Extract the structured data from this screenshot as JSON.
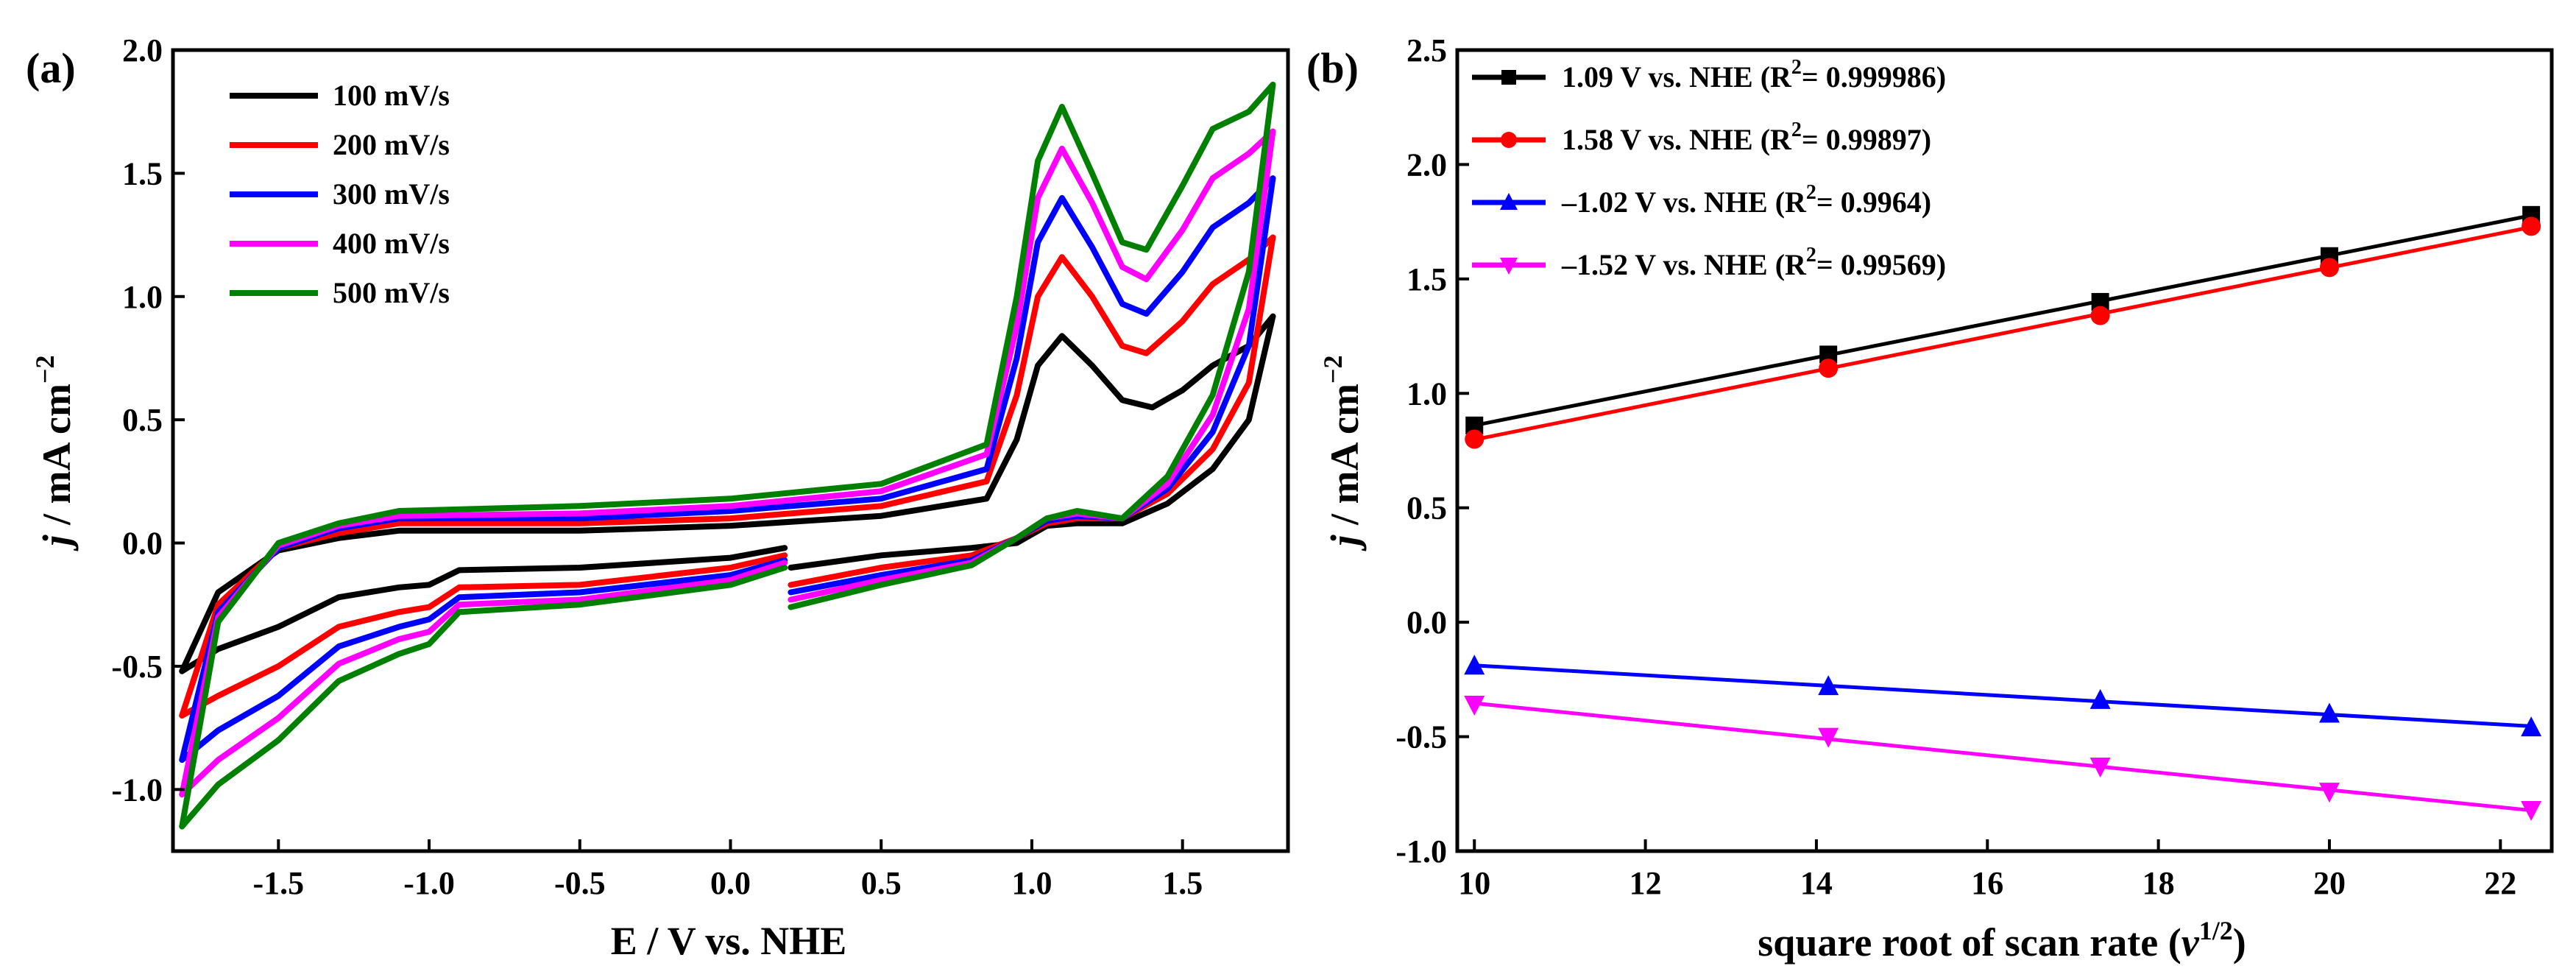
{
  "chart_data": [
    {
      "panel": "(a)",
      "type": "line",
      "xlabel": "E / V vs. NHE",
      "ylabel_parts": {
        "italic": "j",
        "rest": " / mA cm",
        "sup": "−2"
      },
      "xlim": [
        -1.85,
        1.85
      ],
      "ylim": [
        -1.25,
        2.0
      ],
      "x_ticks": [
        -1.5,
        -1.0,
        -0.5,
        0.0,
        0.5,
        1.0,
        1.5
      ],
      "x_tick_labels": [
        "-1.5",
        "-1.0",
        "-0.5",
        "0.0",
        "0.5",
        "1.0",
        "1.5"
      ],
      "y_ticks": [
        -1.0,
        -0.5,
        0.0,
        0.5,
        1.0,
        1.5,
        2.0
      ],
      "y_tick_labels": [
        "-1.0",
        "-0.5",
        "0.0",
        "0.5",
        "1.0",
        "1.5",
        "2.0"
      ],
      "legend_position": "top-left",
      "series": [
        {
          "name": "100 mV/s",
          "color": "#000000",
          "upper": [
            [
              -1.82,
              -0.52
            ],
            [
              -1.7,
              -0.2
            ],
            [
              -1.5,
              -0.03
            ],
            [
              -1.3,
              0.02
            ],
            [
              -1.1,
              0.05
            ],
            [
              -0.5,
              0.05
            ],
            [
              0.0,
              0.07
            ],
            [
              0.5,
              0.11
            ],
            [
              0.85,
              0.18
            ],
            [
              0.95,
              0.42
            ],
            [
              1.02,
              0.72
            ],
            [
              1.1,
              0.84
            ],
            [
              1.2,
              0.72
            ],
            [
              1.3,
              0.58
            ],
            [
              1.4,
              0.55
            ],
            [
              1.5,
              0.62
            ],
            [
              1.6,
              0.72
            ],
            [
              1.72,
              0.8
            ],
            [
              1.8,
              0.92
            ]
          ],
          "lower_right": [
            [
              1.8,
              0.92
            ],
            [
              1.72,
              0.5
            ],
            [
              1.6,
              0.3
            ],
            [
              1.45,
              0.16
            ],
            [
              1.3,
              0.08
            ],
            [
              1.15,
              0.08
            ],
            [
              1.05,
              0.07
            ],
            [
              0.95,
              0.0
            ],
            [
              0.8,
              -0.02
            ],
            [
              0.5,
              -0.05
            ],
            [
              0.2,
              -0.1
            ]
          ],
          "lower_left": [
            [
              0.18,
              -0.02
            ],
            [
              0.0,
              -0.06
            ],
            [
              -0.5,
              -0.1
            ],
            [
              -0.9,
              -0.11
            ],
            [
              -1.0,
              -0.17
            ],
            [
              -1.1,
              -0.18
            ],
            [
              -1.3,
              -0.22
            ],
            [
              -1.5,
              -0.34
            ],
            [
              -1.7,
              -0.43
            ],
            [
              -1.82,
              -0.52
            ]
          ]
        },
        {
          "name": "200 mV/s",
          "color": "#ff0000",
          "upper": [
            [
              -1.82,
              -0.7
            ],
            [
              -1.7,
              -0.25
            ],
            [
              -1.5,
              -0.02
            ],
            [
              -1.3,
              0.04
            ],
            [
              -1.1,
              0.08
            ],
            [
              -0.5,
              0.08
            ],
            [
              0.0,
              0.1
            ],
            [
              0.5,
              0.15
            ],
            [
              0.85,
              0.25
            ],
            [
              0.95,
              0.6
            ],
            [
              1.02,
              1.0
            ],
            [
              1.1,
              1.16
            ],
            [
              1.2,
              1.0
            ],
            [
              1.3,
              0.8
            ],
            [
              1.38,
              0.77
            ],
            [
              1.5,
              0.9
            ],
            [
              1.6,
              1.05
            ],
            [
              1.72,
              1.15
            ],
            [
              1.8,
              1.24
            ]
          ],
          "lower_right": [
            [
              1.8,
              1.24
            ],
            [
              1.72,
              0.65
            ],
            [
              1.6,
              0.38
            ],
            [
              1.45,
              0.2
            ],
            [
              1.3,
              0.1
            ],
            [
              1.15,
              0.1
            ],
            [
              1.05,
              0.08
            ],
            [
              0.95,
              0.02
            ],
            [
              0.8,
              -0.05
            ],
            [
              0.5,
              -0.1
            ],
            [
              0.2,
              -0.17
            ]
          ],
          "lower_left": [
            [
              0.18,
              -0.05
            ],
            [
              0.0,
              -0.1
            ],
            [
              -0.5,
              -0.17
            ],
            [
              -0.9,
              -0.18
            ],
            [
              -1.0,
              -0.26
            ],
            [
              -1.1,
              -0.28
            ],
            [
              -1.3,
              -0.34
            ],
            [
              -1.5,
              -0.5
            ],
            [
              -1.7,
              -0.62
            ],
            [
              -1.82,
              -0.7
            ]
          ]
        },
        {
          "name": "300 mV/s",
          "color": "#0000ff",
          "upper": [
            [
              -1.82,
              -0.88
            ],
            [
              -1.7,
              -0.28
            ],
            [
              -1.5,
              -0.02
            ],
            [
              -1.3,
              0.06
            ],
            [
              -1.1,
              0.1
            ],
            [
              -0.5,
              0.1
            ],
            [
              0.0,
              0.13
            ],
            [
              0.5,
              0.18
            ],
            [
              0.85,
              0.3
            ],
            [
              0.95,
              0.75
            ],
            [
              1.02,
              1.22
            ],
            [
              1.1,
              1.4
            ],
            [
              1.2,
              1.2
            ],
            [
              1.3,
              0.97
            ],
            [
              1.38,
              0.93
            ],
            [
              1.5,
              1.1
            ],
            [
              1.6,
              1.28
            ],
            [
              1.72,
              1.38
            ],
            [
              1.8,
              1.48
            ]
          ],
          "lower_right": [
            [
              1.8,
              1.48
            ],
            [
              1.72,
              0.8
            ],
            [
              1.6,
              0.45
            ],
            [
              1.45,
              0.22
            ],
            [
              1.3,
              0.1
            ],
            [
              1.15,
              0.11
            ],
            [
              1.05,
              0.09
            ],
            [
              0.95,
              0.02
            ],
            [
              0.8,
              -0.07
            ],
            [
              0.5,
              -0.13
            ],
            [
              0.2,
              -0.2
            ]
          ],
          "lower_left": [
            [
              0.18,
              -0.07
            ],
            [
              0.0,
              -0.13
            ],
            [
              -0.5,
              -0.2
            ],
            [
              -0.9,
              -0.22
            ],
            [
              -1.0,
              -0.31
            ],
            [
              -1.1,
              -0.34
            ],
            [
              -1.3,
              -0.42
            ],
            [
              -1.5,
              -0.62
            ],
            [
              -1.7,
              -0.76
            ],
            [
              -1.82,
              -0.88
            ]
          ]
        },
        {
          "name": "400 mV/s",
          "color": "#ff00ff",
          "upper": [
            [
              -1.82,
              -1.02
            ],
            [
              -1.7,
              -0.3
            ],
            [
              -1.5,
              -0.01
            ],
            [
              -1.3,
              0.07
            ],
            [
              -1.1,
              0.11
            ],
            [
              -0.5,
              0.12
            ],
            [
              0.0,
              0.15
            ],
            [
              0.5,
              0.21
            ],
            [
              0.85,
              0.36
            ],
            [
              0.95,
              0.88
            ],
            [
              1.02,
              1.4
            ],
            [
              1.1,
              1.6
            ],
            [
              1.2,
              1.38
            ],
            [
              1.3,
              1.12
            ],
            [
              1.38,
              1.07
            ],
            [
              1.5,
              1.27
            ],
            [
              1.6,
              1.48
            ],
            [
              1.72,
              1.58
            ],
            [
              1.8,
              1.67
            ]
          ],
          "lower_right": [
            [
              1.8,
              1.67
            ],
            [
              1.72,
              0.95
            ],
            [
              1.6,
              0.52
            ],
            [
              1.45,
              0.24
            ],
            [
              1.3,
              0.1
            ],
            [
              1.15,
              0.12
            ],
            [
              1.05,
              0.1
            ],
            [
              0.95,
              0.02
            ],
            [
              0.8,
              -0.08
            ],
            [
              0.5,
              -0.15
            ],
            [
              0.2,
              -0.23
            ]
          ],
          "lower_left": [
            [
              0.18,
              -0.08
            ],
            [
              0.0,
              -0.15
            ],
            [
              -0.5,
              -0.23
            ],
            [
              -0.9,
              -0.25
            ],
            [
              -1.0,
              -0.36
            ],
            [
              -1.1,
              -0.39
            ],
            [
              -1.3,
              -0.49
            ],
            [
              -1.5,
              -0.71
            ],
            [
              -1.7,
              -0.88
            ],
            [
              -1.82,
              -1.02
            ]
          ]
        },
        {
          "name": "500 mV/s",
          "color": "#008000",
          "upper": [
            [
              -1.82,
              -1.15
            ],
            [
              -1.7,
              -0.32
            ],
            [
              -1.5,
              0.0
            ],
            [
              -1.3,
              0.08
            ],
            [
              -1.1,
              0.13
            ],
            [
              -0.5,
              0.15
            ],
            [
              0.0,
              0.18
            ],
            [
              0.5,
              0.24
            ],
            [
              0.85,
              0.4
            ],
            [
              0.95,
              1.0
            ],
            [
              1.02,
              1.55
            ],
            [
              1.1,
              1.77
            ],
            [
              1.2,
              1.5
            ],
            [
              1.3,
              1.22
            ],
            [
              1.38,
              1.19
            ],
            [
              1.5,
              1.45
            ],
            [
              1.6,
              1.68
            ],
            [
              1.72,
              1.75
            ],
            [
              1.8,
              1.86
            ]
          ],
          "lower_right": [
            [
              1.8,
              1.86
            ],
            [
              1.72,
              1.1
            ],
            [
              1.6,
              0.6
            ],
            [
              1.45,
              0.27
            ],
            [
              1.3,
              0.1
            ],
            [
              1.15,
              0.13
            ],
            [
              1.05,
              0.1
            ],
            [
              0.95,
              0.02
            ],
            [
              0.8,
              -0.09
            ],
            [
              0.5,
              -0.17
            ],
            [
              0.2,
              -0.26
            ]
          ],
          "lower_left": [
            [
              0.18,
              -0.1
            ],
            [
              0.0,
              -0.17
            ],
            [
              -0.5,
              -0.25
            ],
            [
              -0.9,
              -0.28
            ],
            [
              -1.0,
              -0.41
            ],
            [
              -1.1,
              -0.45
            ],
            [
              -1.3,
              -0.56
            ],
            [
              -1.5,
              -0.8
            ],
            [
              -1.7,
              -0.98
            ],
            [
              -1.82,
              -1.15
            ]
          ]
        }
      ]
    },
    {
      "panel": "(b)",
      "type": "line",
      "xlabel_parts": {
        "text": "square root of scan rate (",
        "italic": "v",
        "sup": "1/2",
        "close": ")"
      },
      "ylabel_parts": {
        "italic": "j",
        "rest": " / mA cm",
        "sup": "−2"
      },
      "xlim": [
        9.8,
        22.6
      ],
      "ylim": [
        -1.0,
        2.5
      ],
      "x_ticks": [
        10,
        12,
        14,
        16,
        18,
        20,
        22
      ],
      "x_tick_labels": [
        "10",
        "12",
        "14",
        "16",
        "18",
        "20",
        "22"
      ],
      "y_ticks": [
        -1.0,
        -0.5,
        0.0,
        0.5,
        1.0,
        1.5,
        2.0,
        2.5
      ],
      "y_tick_labels": [
        "-1.0",
        "-0.5",
        "0.0",
        "0.5",
        "1.0",
        "1.5",
        "2.0",
        "2.5"
      ],
      "legend_position": "top-left",
      "x": [
        10,
        14.14,
        17.32,
        20,
        22.36
      ],
      "series": [
        {
          "name": "1.09 V vs. NHE",
          "r2_prefix": " (R",
          "r2_value": "= 0.999986)",
          "color": "#000000",
          "marker": "square",
          "values": [
            0.86,
            1.17,
            1.4,
            1.6,
            1.78
          ]
        },
        {
          "name": "1.58 V vs. NHE",
          "r2_prefix": " (R",
          "r2_value": "= 0.99897)",
          "color": "#ff0000",
          "marker": "circle",
          "values": [
            0.8,
            1.11,
            1.34,
            1.55,
            1.73
          ]
        },
        {
          "name": "–1.02 V vs. NHE",
          "r2_prefix": " (R",
          "r2_value": "= 0.9964)",
          "color": "#0000ff",
          "marker": "triangle-up",
          "values": [
            -0.19,
            -0.28,
            -0.34,
            -0.4,
            -0.46
          ]
        },
        {
          "name": "–1.52 V vs. NHE",
          "r2_prefix": " (R",
          "r2_value": "= 0.99569)",
          "color": "#ff00ff",
          "marker": "triangle-down",
          "values": [
            -0.36,
            -0.5,
            -0.63,
            -0.74,
            -0.82
          ]
        }
      ]
    }
  ],
  "r2_sup": "2"
}
